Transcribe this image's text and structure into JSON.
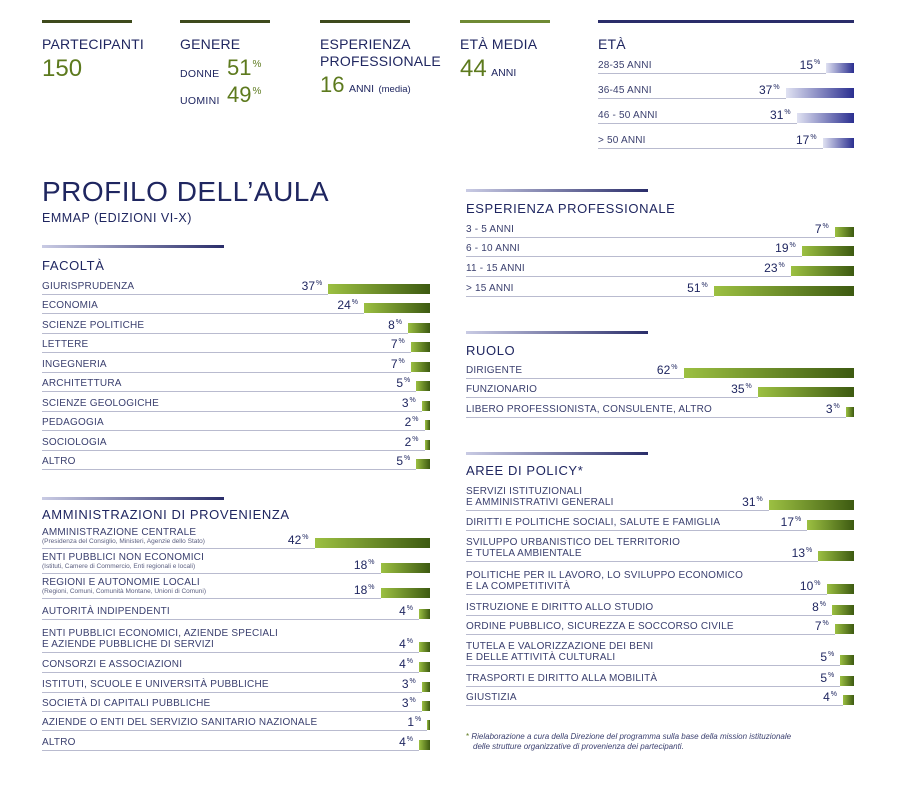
{
  "header": {
    "participants": {
      "label": "PARTECIPANTI",
      "value": "150"
    },
    "gender": {
      "label": "GENERE",
      "women_label": "DONNE",
      "women_value": "51",
      "men_label": "UOMINI",
      "men_value": "49",
      "pct": "%"
    },
    "experience": {
      "label_line1": "ESPERIENZA",
      "label_line2": "PROFESSIONALE",
      "value": "16",
      "unit": "ANNI",
      "note": "(media)"
    },
    "avg_age": {
      "label": "ETÀ MEDIA",
      "value": "44",
      "unit": "ANNI"
    },
    "age": {
      "label": "ETÀ"
    }
  },
  "title": "PROFILO DELL’AULA",
  "subtitle": "EMMAP (EDIZIONI VI-X)",
  "percent_symbol": "%",
  "colors": {
    "green_dark": "#3d5a11",
    "green_light": "#9cc042",
    "blue_dark": "#2b2f90",
    "navy": "#1f2660"
  },
  "chart_data": [
    {
      "type": "bar",
      "title": "ETÀ",
      "categories": [
        "28-35 ANNI",
        "36-45 ANNI",
        "46 - 50 ANNI",
        "> 50 ANNI"
      ],
      "values": [
        15,
        37,
        31,
        17
      ]
    },
    {
      "type": "bar",
      "title": "FACOLTÀ",
      "categories": [
        "GIURISPRUDENZA",
        "ECONOMIA",
        "SCIENZE POLITICHE",
        "LETTERE",
        "INGEGNERIA",
        "ARCHITETTURA",
        "SCIENZE GEOLOGICHE",
        "PEDAGOGIA",
        "SOCIOLOGIA",
        "ALTRO"
      ],
      "values": [
        37,
        24,
        8,
        7,
        7,
        5,
        3,
        2,
        2,
        5
      ]
    },
    {
      "type": "bar",
      "title": "AMMINISTRAZIONI DI PROVENIENZA",
      "categories": [
        "AMMINISTRAZIONE CENTRALE",
        "ENTI PUBBLICI NON ECONOMICI",
        "REGIONI E AUTONOMIE LOCALI",
        "AUTORITÀ INDIPENDENTI",
        "ENTI PUBBLICI ECONOMICI, AZIENDE SPECIALI|E AZIENDE PUBBLICHE DI SERVIZI",
        "CONSORZI E ASSOCIAZIONI",
        "ISTITUTI, SCUOLE E UNIVERSITÀ PUBBLICHE",
        "SOCIETÀ DI CAPITALI PUBBLICHE",
        "AZIENDE O ENTI DEL SERVIZIO SANITARIO NAZIONALE",
        "ALTRO"
      ],
      "subtitles": [
        "(Presidenza del Consiglio, Ministeri, Agenzie dello Stato)",
        "(Istituti, Camere di Commercio, Enti regionali e locali)",
        "(Regioni, Comuni, Comunità Montane, Unioni di Comuni)",
        "",
        "",
        "",
        "",
        "",
        "",
        ""
      ],
      "values": [
        42,
        18,
        18,
        4,
        4,
        4,
        3,
        3,
        1,
        4
      ]
    },
    {
      "type": "bar",
      "title": "ESPERIENZA PROFESSIONALE",
      "categories": [
        "3 - 5 ANNI",
        "6 - 10 ANNI",
        "11 - 15 ANNI",
        "> 15 ANNI"
      ],
      "values": [
        7,
        19,
        23,
        51
      ]
    },
    {
      "type": "bar",
      "title": "RUOLO",
      "categories": [
        "DIRIGENTE",
        "FUNZIONARIO",
        "LIBERO PROFESSIONISTA, CONSULENTE, ALTRO"
      ],
      "values": [
        62,
        35,
        3
      ]
    },
    {
      "type": "bar",
      "title": "AREE DI POLICY*",
      "categories": [
        "SERVIZI ISTITUZIONALI|E AMMINISTRATIVI GENERALI",
        "DIRITTI E POLITICHE SOCIALI, SALUTE E FAMIGLIA",
        "SVILUPPO URBANISTICO DEL TERRITORIO|E TUTELA AMBIENTALE",
        "POLITICHE PER IL LAVORO, LO SVILUPPO ECONOMICO|E LA COMPETITIVITÀ",
        "ISTRUZIONE E DIRITTO ALLO STUDIO",
        "ORDINE PUBBLICO, SICUREZZA E SOCCORSO CIVILE",
        "TUTELA E VALORIZZAZIONE DEI BENI|E DELLE ATTIVITÀ CULTURALI",
        "TRASPORTI E DIRITTO ALLA MOBILITÀ",
        "GIUSTIZIA"
      ],
      "values": [
        31,
        17,
        13,
        10,
        8,
        7,
        5,
        5,
        4
      ]
    }
  ],
  "footnote_mark": "*",
  "footnote_line1": "Rielaborazione a cura della Direzione del programma sulla base della mission istituzionale",
  "footnote_line2": "delle strutture organizzative di provenienza dei partecipanti."
}
